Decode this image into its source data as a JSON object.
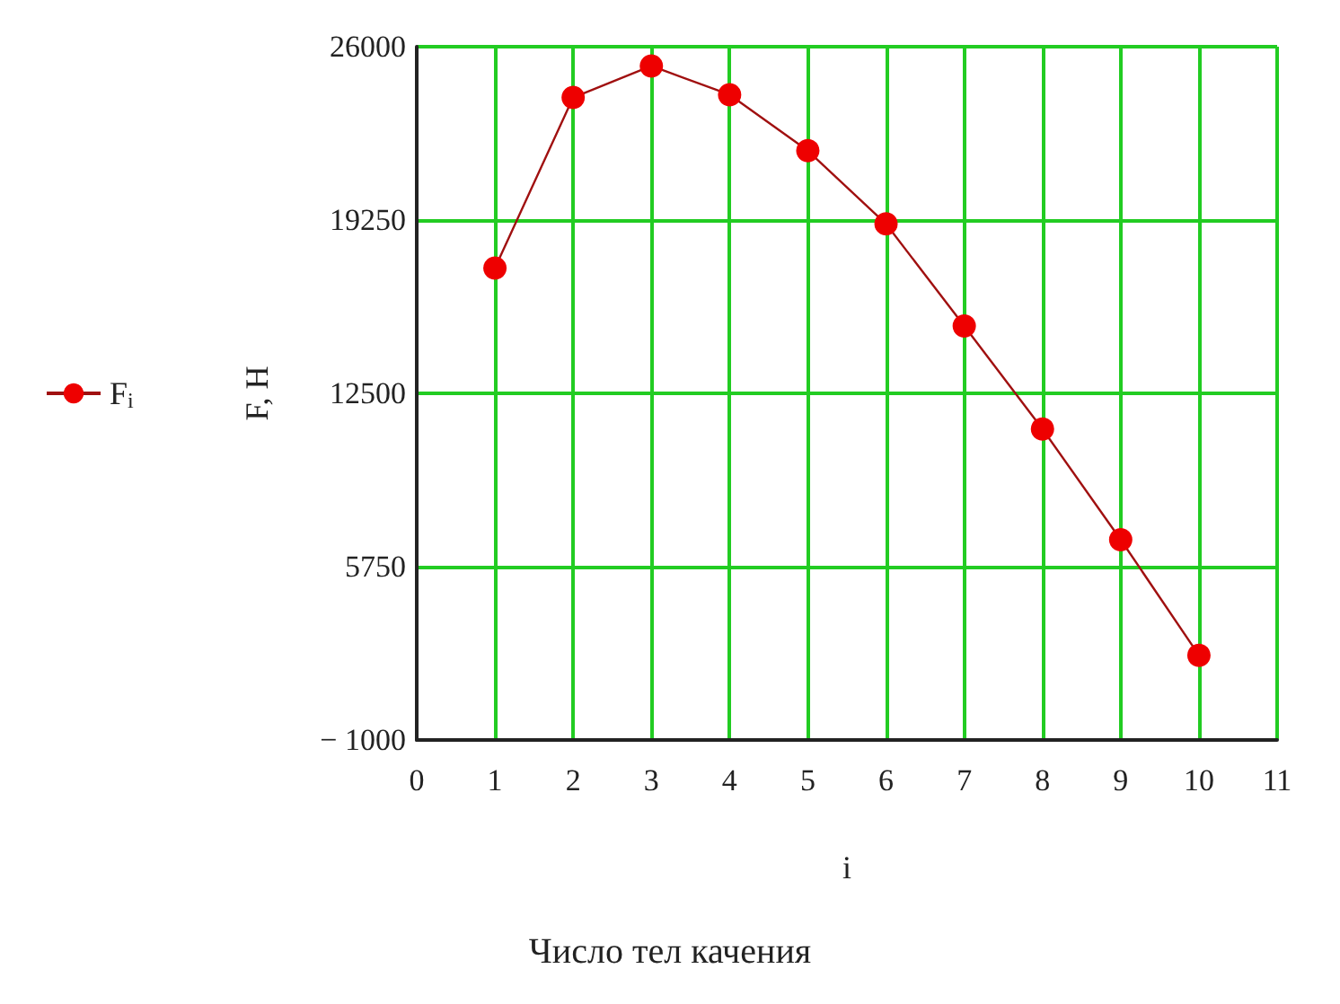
{
  "chart_data": {
    "type": "line",
    "ylabel": "F, H",
    "xlabel": "i",
    "annotations": [
      "Число тел качения"
    ],
    "x": [
      1,
      2,
      3,
      4,
      5,
      6,
      7,
      8,
      9,
      10
    ],
    "series": [
      {
        "name": "F$_{i}$",
        "color": "#ee0000",
        "values": [
          17380,
          24020,
          25250,
          24130,
          21950,
          19100,
          15120,
          11110,
          6800,
          2300
        ]
      }
    ],
    "xlim": [
      0,
      11
    ],
    "xticks": [
      0,
      1,
      2,
      3,
      4,
      5,
      6,
      7,
      8,
      9,
      10,
      11
    ],
    "ylim": [
      -1000,
      26000
    ],
    "yticks": [
      -1000,
      5750,
      12500,
      19250,
      26000
    ],
    "grid": true,
    "legend": "left",
    "marker": "circle",
    "line_style": "solid"
  }
}
